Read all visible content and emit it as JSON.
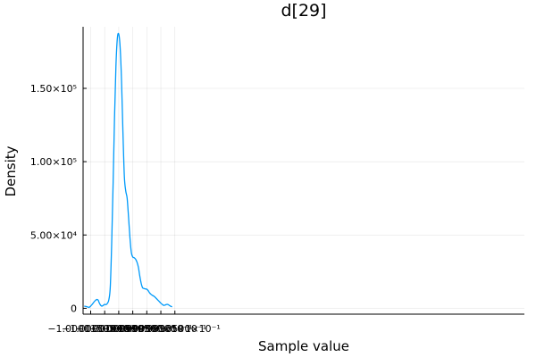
{
  "chart_data": {
    "type": "line",
    "title": "d[29]",
    "xlabel": "Sample value",
    "ylabel": "Density",
    "xlim": [
      -1.0000177,
      -0.9998605
    ],
    "ylim": [
      -4000,
      192000
    ],
    "grid": true,
    "legend": "none",
    "line_color": "#009AFA",
    "x_ticks": [
      {
        "value": -1.000015,
        "label": "−1.0000150×10⁰"
      },
      {
        "value": -1.00001,
        "label": "−1.0000100×10⁰"
      },
      {
        "value": -1.000005,
        "label": "−1.0000050×10⁰"
      },
      {
        "value": -1.0,
        "label": "−1.0000000×10⁰"
      },
      {
        "value": -0.999995,
        "label": "−9.9999500×10⁻¹"
      },
      {
        "value": -0.99999,
        "label": "−9.9999000×10⁻¹"
      },
      {
        "value": -0.999985,
        "label": "−9.9998500×10⁻¹"
      }
    ],
    "y_ticks": [
      {
        "value": 0,
        "label": "0"
      },
      {
        "value": 50000,
        "label": "5.00×10⁴"
      },
      {
        "value": 100000,
        "label": "1.00×10⁵"
      },
      {
        "value": 150000,
        "label": "1.50×10⁵"
      }
    ],
    "series": [
      {
        "x": [
          -1.0000173,
          -1.0000165,
          -1.000016,
          -1.0000155,
          -1.000015,
          -1.0000145,
          -1.000014,
          -1.0000135,
          -1.0000128,
          -1.0000123,
          -1.000012,
          -1.0000115,
          -1.000011,
          -1.0000105,
          -1.00001,
          -1.0000095,
          -1.000009,
          -1.0000085,
          -1.000008,
          -1.0000075,
          -1.000007,
          -1.0000065,
          -1.000006,
          -1.0000055,
          -1.000005,
          -1.0000045,
          -1.000004,
          -1.0000035,
          -1.000003,
          -1.0000025,
          -1.000002,
          -1.0000015,
          -1.000001,
          -1.0000005,
          -1.0,
          -0.9999995,
          -0.999999,
          -0.9999985,
          -0.999998,
          -0.9999975,
          -0.999997,
          -0.9999965,
          -0.999996,
          -0.9999955,
          -0.999995,
          -0.9999945,
          -0.999994,
          -0.9999935,
          -0.999993,
          -0.9999925,
          -0.999992,
          -0.9999915,
          -0.999991,
          -0.9999905,
          -0.99999,
          -0.9999895,
          -0.999989,
          -0.9999885,
          -0.999988,
          -0.9999875,
          -0.999987,
          -0.9999865,
          -0.999986
        ],
        "values": [
          1500,
          1200,
          800,
          700,
          1500,
          2600,
          3800,
          5000,
          6000,
          5500,
          4000,
          2200,
          1500,
          2000,
          2700,
          2500,
          3500,
          6000,
          15000,
          45000,
          85000,
          130000,
          165000,
          184000,
          187000,
          178000,
          155000,
          120000,
          90000,
          80000,
          75000,
          62000,
          48000,
          38000,
          35000,
          34500,
          33500,
          31500,
          28000,
          22000,
          17000,
          14000,
          13500,
          13200,
          13000,
          12000,
          10500,
          9500,
          8800,
          8300,
          7500,
          6500,
          5500,
          4500,
          3500,
          2700,
          2000,
          2200,
          2600,
          2600,
          2000,
          1400,
          1000
        ]
      }
    ]
  }
}
